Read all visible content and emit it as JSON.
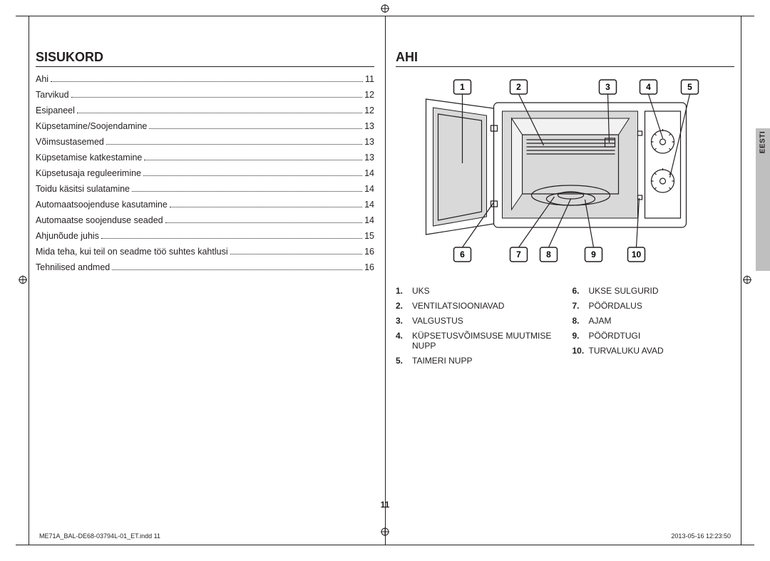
{
  "left": {
    "title": "SISUKORD",
    "toc": [
      {
        "label": "Ahi",
        "page": "11"
      },
      {
        "label": "Tarvikud",
        "page": "12"
      },
      {
        "label": "Esipaneel",
        "page": "12"
      },
      {
        "label": "Küpsetamine/Soojendamine",
        "page": "13"
      },
      {
        "label": "Võimsustasemed",
        "page": "13"
      },
      {
        "label": "Küpsetamise katkestamine",
        "page": "13"
      },
      {
        "label": "Küpsetusaja reguleerimine",
        "page": "14"
      },
      {
        "label": "Toidu käsitsi sulatamine",
        "page": "14"
      },
      {
        "label": "Automaatsoojenduse kasutamine",
        "page": "14"
      },
      {
        "label": "Automaatse soojenduse seaded",
        "page": "14"
      },
      {
        "label": "Ahjunõude juhis",
        "page": "15"
      },
      {
        "label": "Mida teha, kui teil on seadme töö suhtes kahtlusi",
        "page": "16"
      },
      {
        "label": "Tehnilised andmed",
        "page": "16"
      }
    ]
  },
  "right": {
    "title": "AHI",
    "callouts_top": [
      "1",
      "2",
      "3",
      "4",
      "5"
    ],
    "callouts_bottom": [
      "6",
      "7",
      "8",
      "9",
      "10"
    ],
    "parts_left": [
      {
        "n": "1.",
        "t": "UKS"
      },
      {
        "n": "2.",
        "t": "VENTILATSIOONIAVAD"
      },
      {
        "n": "3.",
        "t": "VALGUSTUS"
      },
      {
        "n": "4.",
        "t": "KÜPSETUSVÕIMSUSE MUUTMISE NUPP"
      },
      {
        "n": "5.",
        "t": "TAIMERI NUPP"
      }
    ],
    "parts_right": [
      {
        "n": "6.",
        "t": "UKSE SULGURID"
      },
      {
        "n": "7.",
        "t": "PÖÖRDALUS"
      },
      {
        "n": "8.",
        "t": "AJAM"
      },
      {
        "n": "9.",
        "t": "PÖÖRDTUGI"
      },
      {
        "n": "10.",
        "t": "TURVALUKU AVAD"
      }
    ]
  },
  "tab": "EESTI",
  "page_number": "11",
  "footer_left": "ME71A_BAL-DE68-03794L-01_ET.indd   11",
  "footer_right": "2013-05-16    12:23:50",
  "colors": {
    "text": "#231f20",
    "tab_bg": "#bfbfbf",
    "fill_light": "#f2f2f2",
    "fill_dark": "#d9d9d9"
  }
}
